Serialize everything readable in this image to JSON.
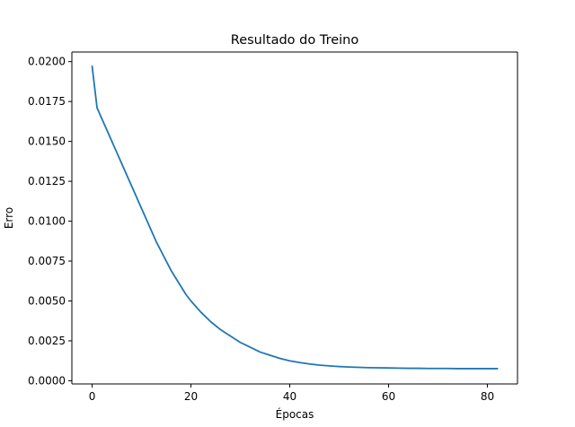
{
  "chart_data": {
    "type": "line",
    "title": "Resultado do Treino",
    "xlabel": "Épocas",
    "ylabel": "Erro",
    "xlim": [
      -4.1,
      86.1
    ],
    "ylim": [
      -0.0002,
      0.0206
    ],
    "xticks": [
      0,
      20,
      40,
      60,
      80
    ],
    "xtick_labels": [
      "0",
      "20",
      "40",
      "60",
      "80"
    ],
    "yticks": [
      0.0,
      0.0025,
      0.005,
      0.0075,
      0.01,
      0.0125,
      0.015,
      0.0175,
      0.02
    ],
    "ytick_labels": [
      "0.0000",
      "0.0025",
      "0.0050",
      "0.0075",
      "0.0100",
      "0.0125",
      "0.0150",
      "0.0175",
      "0.0200"
    ],
    "grid": false,
    "series": [
      {
        "color": "#1f77b4",
        "x": [
          0,
          1,
          2,
          3,
          4,
          5,
          6,
          7,
          8,
          9,
          10,
          11,
          12,
          13,
          14,
          15,
          16,
          17,
          18,
          19,
          20,
          22,
          24,
          26,
          28,
          30,
          32,
          34,
          36,
          38,
          40,
          42,
          44,
          46,
          48,
          50,
          52,
          54,
          56,
          58,
          60,
          62,
          64,
          66,
          68,
          70,
          72,
          74,
          76,
          78,
          80,
          82
        ],
        "y": [
          0.0197,
          0.0171,
          0.0164,
          0.0157,
          0.015,
          0.0143,
          0.0136,
          0.0129,
          0.0122,
          0.0115,
          0.0108,
          0.0101,
          0.0094,
          0.0087,
          0.0081,
          0.0075,
          0.0069,
          0.0064,
          0.0059,
          0.0054,
          0.005,
          0.0043,
          0.0037,
          0.0032,
          0.0028,
          0.0024,
          0.0021,
          0.0018,
          0.0016,
          0.0014,
          0.00125,
          0.00114,
          0.00105,
          0.00098,
          0.00093,
          0.00089,
          0.00086,
          0.00084,
          0.00082,
          0.00081,
          0.0008,
          0.00079,
          0.00078,
          0.00078,
          0.00077,
          0.00077,
          0.00077,
          0.00076,
          0.00076,
          0.00076,
          0.00076,
          0.00076
        ]
      }
    ]
  }
}
